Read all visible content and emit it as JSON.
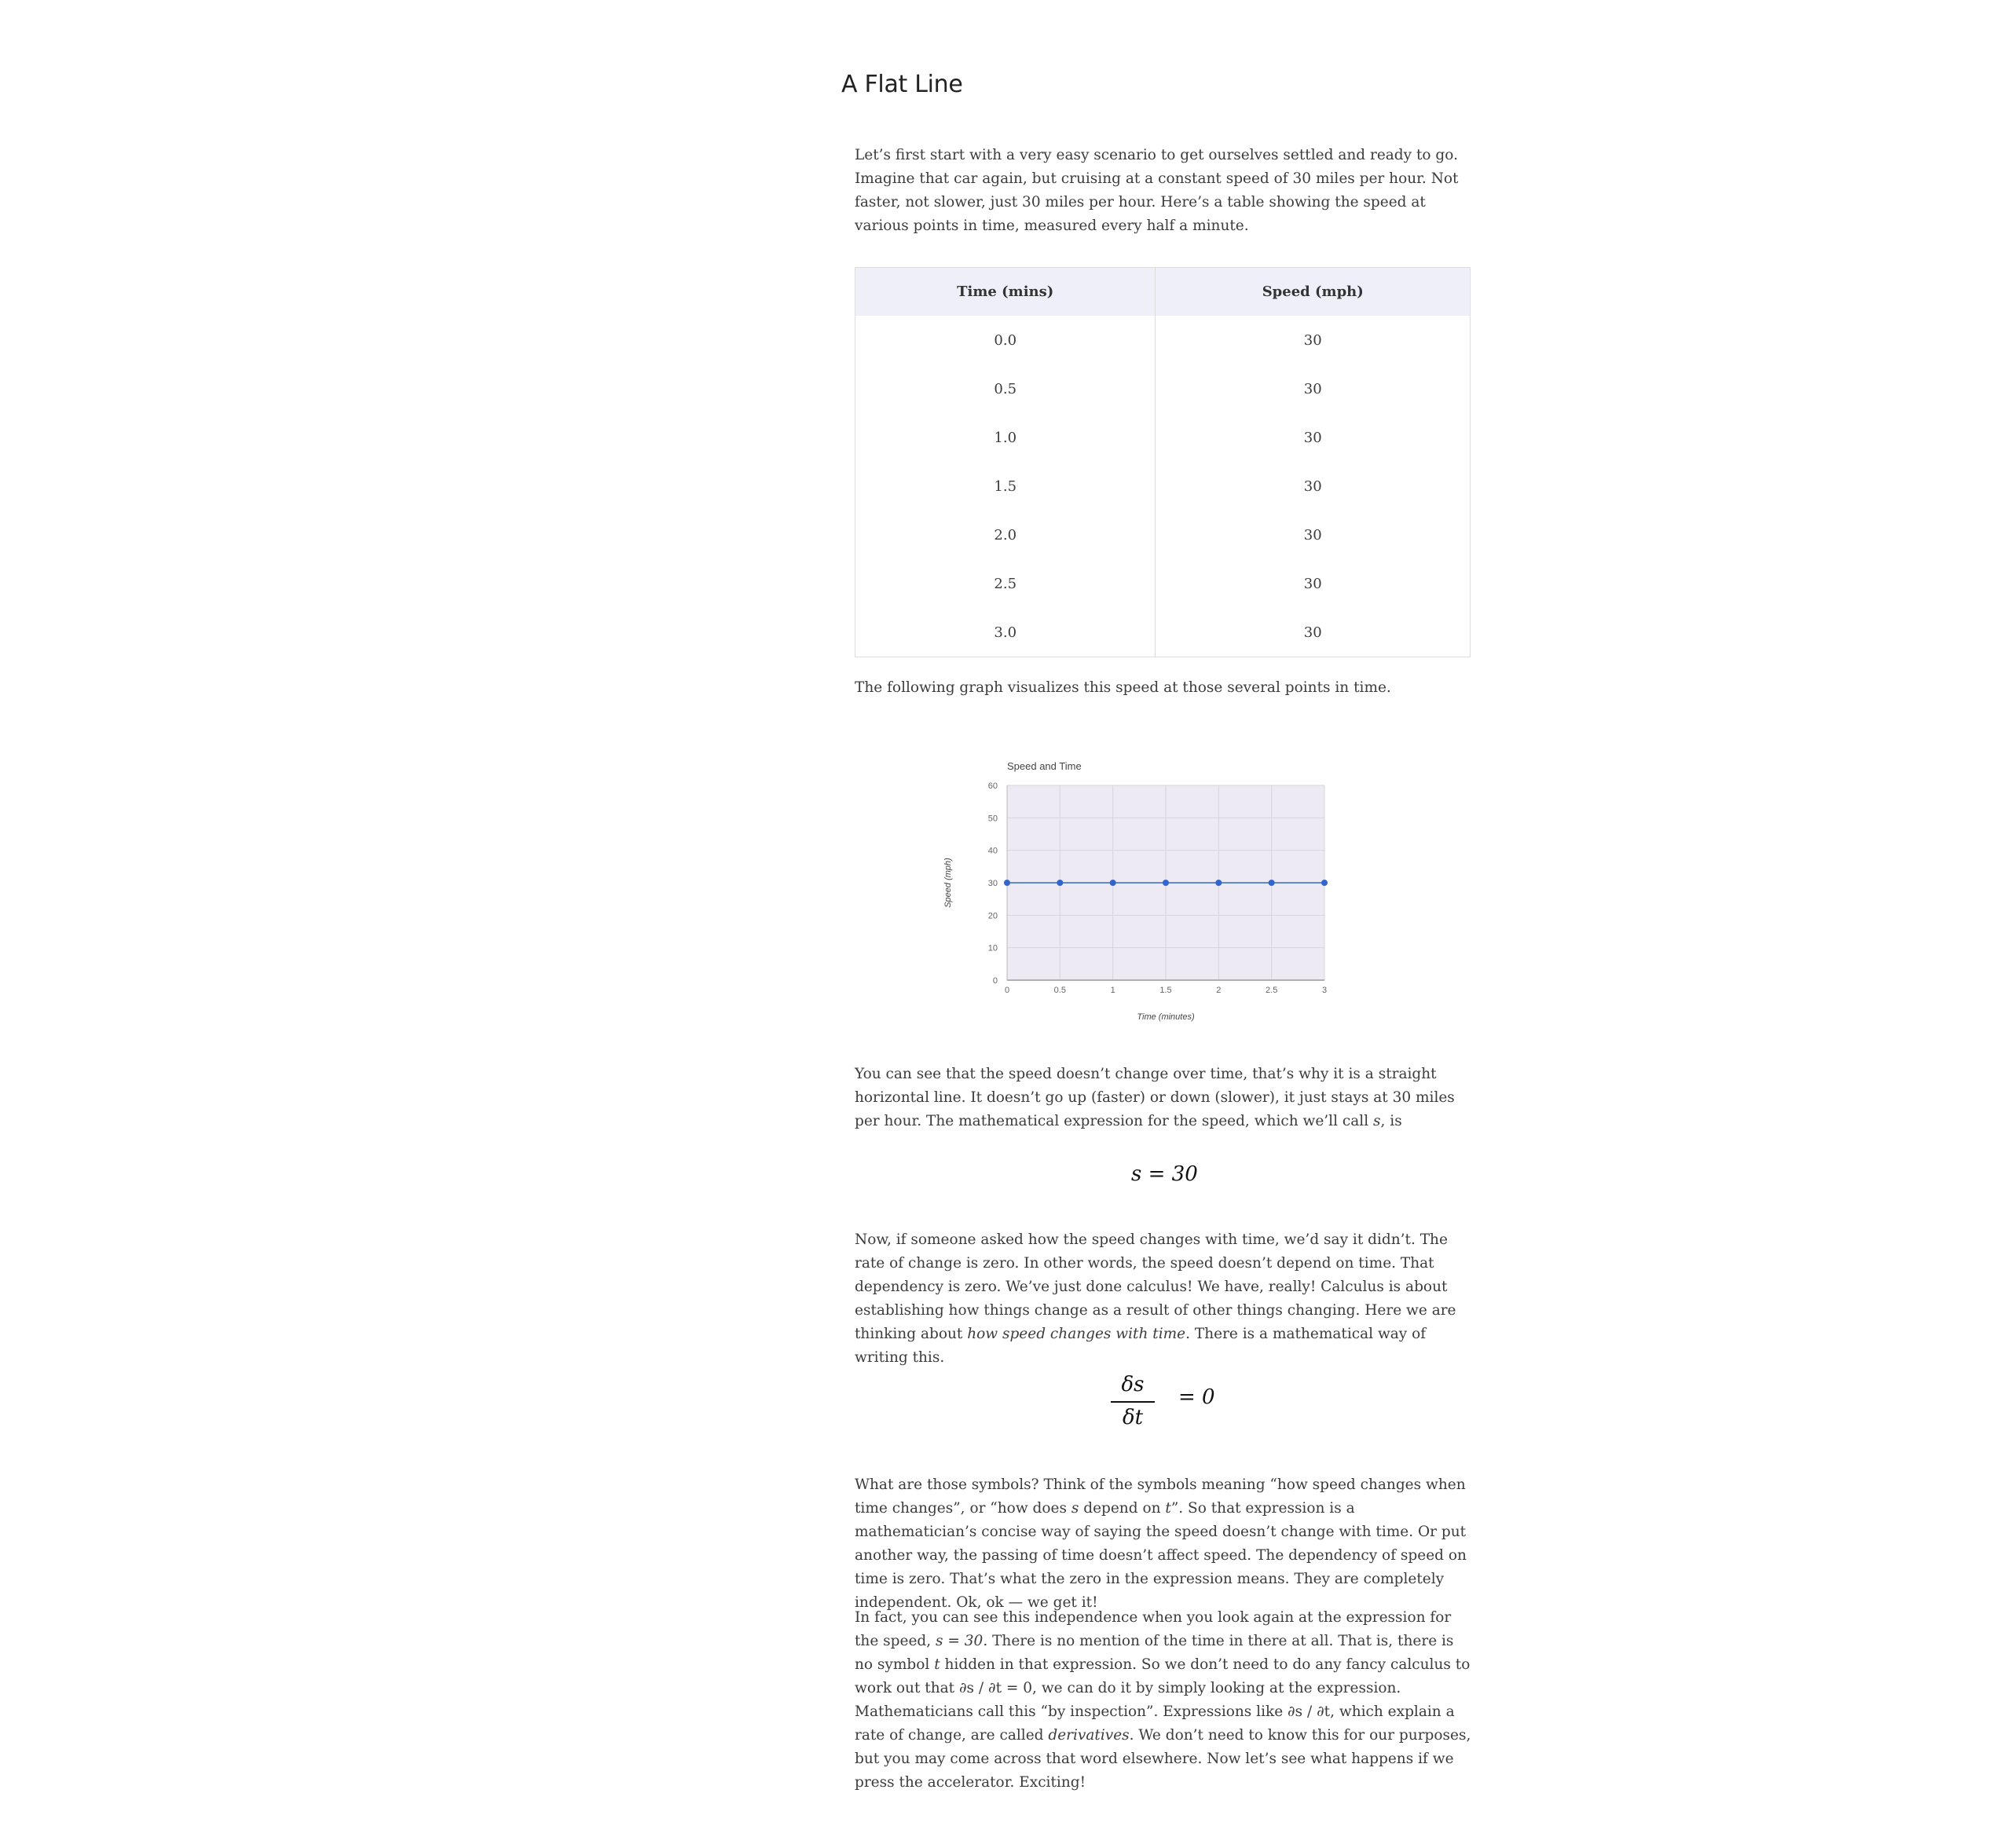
{
  "heading": "A Flat Line",
  "intro": "Let’s first start with a very easy scenario to get ourselves settled and ready to go. Imagine that car again, but cruising at a constant speed of 30 miles per hour. Not faster, not slower, just 30 miles per hour. Here’s a table showing the speed at various points in time, measured every half a minute.",
  "table": {
    "headers": [
      "Time (mins)",
      "Speed (mph)"
    ],
    "rows": [
      [
        "0.0",
        "30"
      ],
      [
        "0.5",
        "30"
      ],
      [
        "1.0",
        "30"
      ],
      [
        "1.5",
        "30"
      ],
      [
        "2.0",
        "30"
      ],
      [
        "2.5",
        "30"
      ],
      [
        "3.0",
        "30"
      ]
    ]
  },
  "graph_intro": "The following graph visualizes this speed at those several points in time.",
  "chart_data": {
    "type": "line",
    "title": "Speed and Time",
    "xlabel": "Time (minutes)",
    "ylabel": "Speed (mph)",
    "x": [
      0,
      0.5,
      1,
      1.5,
      2,
      2.5,
      3
    ],
    "series": [
      {
        "values": [
          30,
          30,
          30,
          30,
          30,
          30,
          30
        ]
      }
    ],
    "xlim": [
      0,
      3
    ],
    "ylim": [
      0,
      60
    ],
    "xticks": [
      "0",
      "0.5",
      "1",
      "1.5",
      "2",
      "2.5",
      "3"
    ],
    "yticks": [
      "0",
      "10",
      "20",
      "30",
      "40",
      "50",
      "60"
    ],
    "grid": true,
    "colors": {
      "line": "#3366cc",
      "plot_bg": "#edeaf3",
      "grid": "#d7d4de"
    }
  },
  "para_after_graph": {
    "before_var": "You can see that the speed doesn’t change over time, that’s why it is a straight horizontal line. It doesn’t go up (faster) or down (slower), it just stays at 30 miles per hour. The mathematical expression for the speed, which we’ll call ",
    "var": "s",
    "after_var": ", is"
  },
  "equation1": "s = 30",
  "para_rate": {
    "text": "Now, if someone asked how the speed changes with time, we’d say it didn’t. The rate of change is zero. In other words, the speed doesn’t depend on time. That dependency is zero. We’ve just done calculus! We have, really! Calculus is about establishing how things change as a result of other things changing. Here we are thinking about ",
    "emph": "how speed changes with time",
    "tail": ". There is a mathematical way of writing this."
  },
  "equation2": {
    "numerator": "δs",
    "denominator": "δt",
    "rhs": "= 0"
  },
  "para_symbols": {
    "a": "What are those symbols? Think of the symbols meaning “how speed changes when time changes”, or “how does ",
    "s": "s",
    "b": " depend on ",
    "t": "t",
    "c": "”. So that expression is a mathematician’s concise way of saying the speed doesn’t change with time. Or put another way, the passing of time doesn’t affect speed. The dependency of speed on time is zero. That’s what the zero in the expression means. They are completely independent. Ok, ok — we get it!"
  },
  "para_inspection": {
    "a": "In fact, you can see this independence when you look again at the expression for the speed, ",
    "expr": "s = 30",
    "b": ". There is no mention of the time in there at all. That is, there is no symbol ",
    "t": "t",
    "c": " hidden in that expression. So we don’t need to do any fancy calculus to work out that ∂s / ∂t = 0, we can do it by simply looking at the expression. Mathematicians call this “by inspection”. Expressions like ∂s / ∂t, which explain a rate of change, are called ",
    "emph": "derivatives",
    "d": ". We don’t need to know this for our purposes, but you may come across that word elsewhere. Now let’s see what happens if we press the accelerator. Exciting!"
  }
}
